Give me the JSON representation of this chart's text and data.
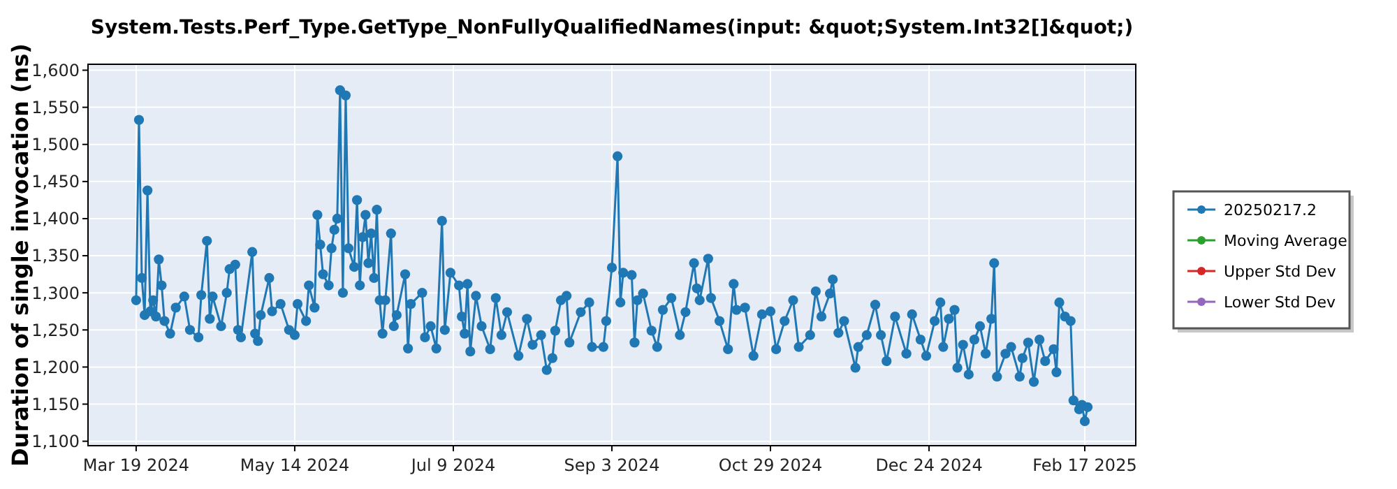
{
  "chart_data": {
    "type": "line",
    "title": "System.Tests.Perf_Type.GetType_NonFullyQualifiedNames(input: &quot;System.Int32[]&quot;)",
    "ylabel": "Duration of single invocation (ns)",
    "x": [
      "2024-03-19",
      "2024-03-20",
      "2024-03-21",
      "2024-03-22",
      "2024-03-23",
      "2024-03-24",
      "2024-03-25",
      "2024-03-26",
      "2024-03-27",
      "2024-03-28",
      "2024-03-29",
      "2024-03-31",
      "2024-04-02",
      "2024-04-05",
      "2024-04-07",
      "2024-04-10",
      "2024-04-11",
      "2024-04-13",
      "2024-04-14",
      "2024-04-15",
      "2024-04-18",
      "2024-04-20",
      "2024-04-21",
      "2024-04-23",
      "2024-04-24",
      "2024-04-25",
      "2024-04-29",
      "2024-04-30",
      "2024-05-01",
      "2024-05-02",
      "2024-05-05",
      "2024-05-06",
      "2024-05-09",
      "2024-05-12",
      "2024-05-14",
      "2024-05-15",
      "2024-05-18",
      "2024-05-19",
      "2024-05-21",
      "2024-05-22",
      "2024-05-23",
      "2024-05-24",
      "2024-05-26",
      "2024-05-27",
      "2024-05-28",
      "2024-05-29",
      "2024-05-30",
      "2024-05-31",
      "2024-06-01",
      "2024-06-02",
      "2024-06-04",
      "2024-06-05",
      "2024-06-06",
      "2024-06-07",
      "2024-06-08",
      "2024-06-09",
      "2024-06-10",
      "2024-06-11",
      "2024-06-12",
      "2024-06-13",
      "2024-06-14",
      "2024-06-15",
      "2024-06-17",
      "2024-06-18",
      "2024-06-19",
      "2024-06-22",
      "2024-06-23",
      "2024-06-24",
      "2024-06-28",
      "2024-06-29",
      "2024-07-01",
      "2024-07-03",
      "2024-07-05",
      "2024-07-06",
      "2024-07-08",
      "2024-07-11",
      "2024-07-12",
      "2024-07-13",
      "2024-07-14",
      "2024-07-15",
      "2024-07-17",
      "2024-07-19",
      "2024-07-22",
      "2024-07-24",
      "2024-07-26",
      "2024-07-28",
      "2024-08-01",
      "2024-08-04",
      "2024-08-06",
      "2024-08-09",
      "2024-08-11",
      "2024-08-13",
      "2024-08-14",
      "2024-08-16",
      "2024-08-18",
      "2024-08-19",
      "2024-08-23",
      "2024-08-26",
      "2024-08-27",
      "2024-08-31",
      "2024-09-01",
      "2024-09-03",
      "2024-09-05",
      "2024-09-06",
      "2024-09-07",
      "2024-09-10",
      "2024-09-11",
      "2024-09-12",
      "2024-09-14",
      "2024-09-17",
      "2024-09-19",
      "2024-09-21",
      "2024-09-24",
      "2024-09-27",
      "2024-09-29",
      "2024-10-02",
      "2024-10-03",
      "2024-10-04",
      "2024-10-07",
      "2024-10-08",
      "2024-10-11",
      "2024-10-14",
      "2024-10-16",
      "2024-10-17",
      "2024-10-20",
      "2024-10-23",
      "2024-10-26",
      "2024-10-29",
      "2024-10-31",
      "2024-11-03",
      "2024-11-06",
      "2024-11-08",
      "2024-11-12",
      "2024-11-14",
      "2024-11-16",
      "2024-11-19",
      "2024-11-20",
      "2024-11-22",
      "2024-11-24",
      "2024-11-28",
      "2024-11-29",
      "2024-12-02",
      "2024-12-05",
      "2024-12-07",
      "2024-12-09",
      "2024-12-12",
      "2024-12-16",
      "2024-12-18",
      "2024-12-21",
      "2024-12-23",
      "2024-12-26",
      "2024-12-28",
      "2024-12-29",
      "2024-12-31",
      "2025-01-02",
      "2025-01-03",
      "2025-01-05",
      "2025-01-07",
      "2025-01-09",
      "2025-01-11",
      "2025-01-13",
      "2025-01-15",
      "2025-01-16",
      "2025-01-17",
      "2025-01-20",
      "2025-01-22",
      "2025-01-25",
      "2025-01-26",
      "2025-01-28",
      "2025-01-30",
      "2025-02-01",
      "2025-02-03",
      "2025-02-06",
      "2025-02-07",
      "2025-02-08",
      "2025-02-10",
      "2025-02-12",
      "2025-02-13",
      "2025-02-15",
      "2025-02-16",
      "2025-02-17",
      "2025-02-18"
    ],
    "series": [
      {
        "name": "20250217.2",
        "color": "#1f77b4",
        "values": [
          1290,
          1533,
          1320,
          1270,
          1438,
          1275,
          1290,
          1268,
          1345,
          1310,
          1262,
          1245,
          1280,
          1295,
          1250,
          1240,
          1297,
          1370,
          1265,
          1295,
          1255,
          1300,
          1332,
          1338,
          1250,
          1240,
          1355,
          1245,
          1235,
          1270,
          1320,
          1275,
          1285,
          1250,
          1243,
          1285,
          1262,
          1310,
          1280,
          1405,
          1365,
          1325,
          1310,
          1360,
          1385,
          1400,
          1573,
          1300,
          1566,
          1360,
          1335,
          1425,
          1310,
          1375,
          1405,
          1340,
          1380,
          1320,
          1412,
          1290,
          1245,
          1290,
          1380,
          1255,
          1270,
          1325,
          1225,
          1285,
          1300,
          1240,
          1255,
          1225,
          1397,
          1250,
          1327,
          1310,
          1268,
          1245,
          1312,
          1221,
          1296,
          1255,
          1224,
          1293,
          1243,
          1274,
          1215,
          1265,
          1230,
          1243,
          1196,
          1212,
          1249,
          1290,
          1296,
          1233,
          1274,
          1287,
          1227,
          1227,
          1262,
          1334,
          1484,
          1287,
          1327,
          1324,
          1233,
          1290,
          1299,
          1249,
          1227,
          1277,
          1293,
          1243,
          1274,
          1340,
          1306,
          1290,
          1346,
          1293,
          1262,
          1224,
          1312,
          1277,
          1280,
          1215,
          1271,
          1275,
          1224,
          1262,
          1290,
          1227,
          1243,
          1302,
          1268,
          1299,
          1318,
          1246,
          1262,
          1199,
          1227,
          1243,
          1284,
          1243,
          1208,
          1268,
          1218,
          1271,
          1237,
          1215,
          1262,
          1287,
          1227,
          1265,
          1277,
          1199,
          1230,
          1190,
          1237,
          1255,
          1218,
          1265,
          1340,
          1187,
          1218,
          1227,
          1187,
          1212,
          1233,
          1180,
          1237,
          1208,
          1224,
          1193,
          1287,
          1268,
          1262,
          1155,
          1143,
          1149,
          1127,
          1146
        ]
      },
      {
        "name": "Moving Average",
        "color": "#2ca02c",
        "values": [
          null,
          null,
          null,
          null,
          null,
          null,
          null,
          null,
          null,
          null,
          null,
          null,
          null,
          null,
          null,
          null,
          null,
          null,
          null,
          null,
          null,
          null,
          null,
          null,
          null,
          null,
          null,
          null,
          null,
          null,
          null,
          null,
          null,
          null,
          null,
          null,
          null,
          null,
          null,
          null,
          null,
          null,
          null,
          null,
          null,
          null,
          null,
          null,
          null,
          null,
          null,
          null,
          null,
          null,
          null,
          null,
          null,
          null,
          null,
          null,
          null,
          null,
          null,
          null,
          null,
          null,
          null,
          null,
          null,
          null,
          null,
          null,
          null,
          null,
          null,
          null,
          null,
          null,
          null,
          null,
          null,
          null,
          null,
          null,
          null,
          null,
          null,
          null,
          null,
          null,
          null,
          null,
          null,
          null,
          null,
          null,
          null,
          null,
          null,
          null,
          null,
          null,
          null,
          null,
          null,
          null,
          null,
          null,
          null,
          null,
          null,
          null,
          null,
          null,
          null,
          null,
          null,
          null,
          null,
          null,
          null,
          null,
          null,
          null,
          null,
          null,
          null,
          null,
          null,
          null,
          null,
          null,
          null,
          null,
          null,
          null,
          null,
          null,
          null,
          null,
          null,
          null,
          null,
          null,
          null,
          null,
          null,
          null,
          null,
          null,
          null,
          null,
          null,
          null,
          null,
          null,
          null,
          null,
          null,
          null,
          null,
          null,
          null,
          null,
          null,
          null,
          null,
          null,
          null,
          null,
          null,
          null,
          null,
          null,
          null,
          null,
          null,
          null,
          null,
          null,
          null,
          null
        ]
      },
      {
        "name": "Upper Std Dev",
        "color": "#d62728",
        "values": [
          null,
          null,
          null,
          null,
          null,
          null,
          null,
          null,
          null,
          null,
          null,
          null,
          null,
          null,
          null,
          null,
          null,
          null,
          null,
          null,
          null,
          null,
          null,
          null,
          null,
          null,
          null,
          null,
          null,
          null,
          null,
          null,
          null,
          null,
          null,
          null,
          null,
          null,
          null,
          null,
          null,
          null,
          null,
          null,
          null,
          null,
          null,
          null,
          null,
          null,
          null,
          null,
          null,
          null,
          null,
          null,
          null,
          null,
          null,
          null,
          null,
          null,
          null,
          null,
          null,
          null,
          null,
          null,
          null,
          null,
          null,
          null,
          null,
          null,
          null,
          null,
          null,
          null,
          null,
          null,
          null,
          null,
          null,
          null,
          null,
          null,
          null,
          null,
          null,
          null,
          null,
          null,
          null,
          null,
          null,
          null,
          null,
          null,
          null,
          null,
          null,
          null,
          null,
          null,
          null,
          null,
          null,
          null,
          null,
          null,
          null,
          null,
          null,
          null,
          null,
          null,
          null,
          null,
          null,
          null,
          null,
          null,
          null,
          null,
          null,
          null,
          null,
          null,
          null,
          null,
          null,
          null,
          null,
          null,
          null,
          null,
          null,
          null,
          null,
          null,
          null,
          null,
          null,
          null,
          null,
          null,
          null,
          null,
          null,
          null,
          null,
          null,
          null,
          null,
          null,
          null,
          null,
          null,
          null,
          null,
          null,
          null,
          null,
          null,
          null,
          null,
          null,
          null,
          null,
          null,
          null,
          null,
          null,
          null,
          null,
          null,
          null,
          null,
          null,
          null,
          null,
          null
        ]
      },
      {
        "name": "Lower Std Dev",
        "color": "#9467bd",
        "values": [
          null,
          null,
          null,
          null,
          null,
          null,
          null,
          null,
          null,
          null,
          null,
          null,
          null,
          null,
          null,
          null,
          null,
          null,
          null,
          null,
          null,
          null,
          null,
          null,
          null,
          null,
          null,
          null,
          null,
          null,
          null,
          null,
          null,
          null,
          null,
          null,
          null,
          null,
          null,
          null,
          null,
          null,
          null,
          null,
          null,
          null,
          null,
          null,
          null,
          null,
          null,
          null,
          null,
          null,
          null,
          null,
          null,
          null,
          null,
          null,
          null,
          null,
          null,
          null,
          null,
          null,
          null,
          null,
          null,
          null,
          null,
          null,
          null,
          null,
          null,
          null,
          null,
          null,
          null,
          null,
          null,
          null,
          null,
          null,
          null,
          null,
          null,
          null,
          null,
          null,
          null,
          null,
          null,
          null,
          null,
          null,
          null,
          null,
          null,
          null,
          null,
          null,
          null,
          null,
          null,
          null,
          null,
          null,
          null,
          null,
          null,
          null,
          null,
          null,
          null,
          null,
          null,
          null,
          null,
          null,
          null,
          null,
          null,
          null,
          null,
          null,
          null,
          null,
          null,
          null,
          null,
          null,
          null,
          null,
          null,
          null,
          null,
          null,
          null,
          null,
          null,
          null,
          null,
          null,
          null,
          null,
          null,
          null,
          null,
          null,
          null,
          null,
          null,
          null,
          null,
          null,
          null,
          null,
          null,
          null,
          null,
          null,
          null,
          null,
          null,
          null,
          null,
          null,
          null,
          null,
          null,
          null,
          null,
          null,
          null,
          null,
          null,
          null,
          null,
          null,
          null,
          null
        ]
      }
    ],
    "xlim": [
      "2024-03-02",
      "2025-03-07"
    ],
    "xticks": [
      {
        "value": "2024-03-19",
        "label": "Mar 19 2024"
      },
      {
        "value": "2024-05-14",
        "label": "May 14 2024"
      },
      {
        "value": "2024-07-09",
        "label": "Jul 9 2024"
      },
      {
        "value": "2024-09-03",
        "label": "Sep 3 2024"
      },
      {
        "value": "2024-10-29",
        "label": "Oct 29 2024"
      },
      {
        "value": "2024-12-24",
        "label": "Dec 24 2024"
      },
      {
        "value": "2025-02-17",
        "label": "Feb 17 2025"
      }
    ],
    "ylim": [
      1094,
      1608
    ],
    "yticks": [
      {
        "value": 1100,
        "label": "1,100"
      },
      {
        "value": 1150,
        "label": "1,150"
      },
      {
        "value": 1200,
        "label": "1,200"
      },
      {
        "value": 1250,
        "label": "1,250"
      },
      {
        "value": 1300,
        "label": "1,300"
      },
      {
        "value": 1350,
        "label": "1,350"
      },
      {
        "value": 1400,
        "label": "1,400"
      },
      {
        "value": 1450,
        "label": "1,450"
      },
      {
        "value": 1500,
        "label": "1,500"
      },
      {
        "value": 1550,
        "label": "1,550"
      },
      {
        "value": 1600,
        "label": "1,600"
      }
    ],
    "grid": true,
    "legend": "right",
    "marker": "circle",
    "line_style": "solid"
  }
}
